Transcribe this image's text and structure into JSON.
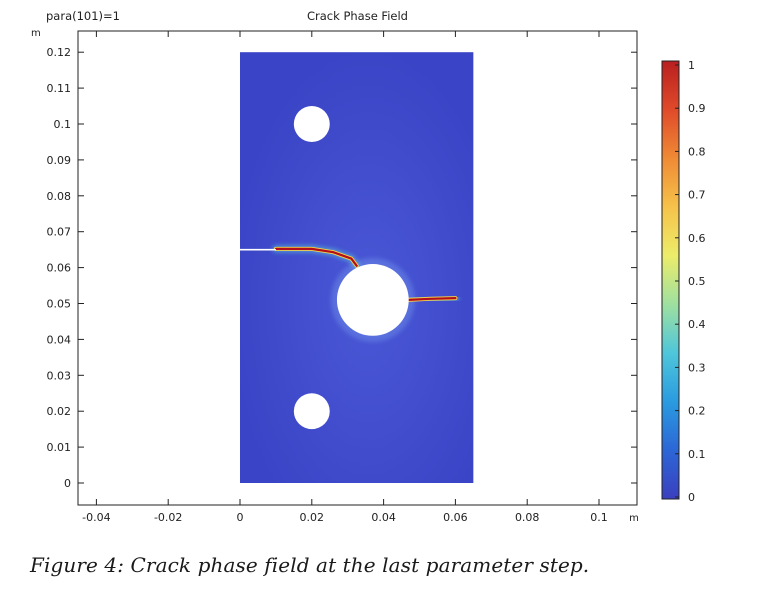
{
  "header": {
    "param_label": "para(101)=1",
    "title": "Crack Phase Field"
  },
  "caption": "Figure 4: Crack phase field at the last parameter step.",
  "colors": {
    "background_field": "#3b47c8",
    "crack_core": "#b30f1a",
    "hole_fill": "#ffffff"
  },
  "chart_data": {
    "type": "heatmap",
    "title": "Crack Phase Field",
    "subtitle": "para(101)=1",
    "xlabel": "m",
    "ylabel": "m",
    "xlim": [
      -0.045,
      0.11
    ],
    "ylim": [
      -0.006,
      0.126
    ],
    "x_ticks": [
      -0.04,
      -0.02,
      0,
      0.02,
      0.04,
      0.06,
      0.08,
      0.1
    ],
    "x_tick_labels": [
      "-0.04",
      "-0.02",
      "0",
      "0.02",
      "0.04",
      "0.06",
      "0.08",
      "0.1"
    ],
    "y_ticks": [
      0,
      0.01,
      0.02,
      0.03,
      0.04,
      0.05,
      0.06,
      0.07,
      0.08,
      0.09,
      0.1,
      0.11,
      0.12
    ],
    "y_tick_labels": [
      "0",
      "0.01",
      "0.02",
      "0.03",
      "0.04",
      "0.05",
      "0.06",
      "0.07",
      "0.08",
      "0.09",
      "0.1",
      "0.11",
      "0.12"
    ],
    "domain": {
      "x": [
        0,
        0.065
      ],
      "y": [
        0,
        0.12
      ]
    },
    "holes": [
      {
        "cx": 0.02,
        "cy": 0.1,
        "r": 0.005
      },
      {
        "cx": 0.037,
        "cy": 0.051,
        "r": 0.01
      },
      {
        "cx": 0.02,
        "cy": 0.02,
        "r": 0.005
      }
    ],
    "notch": {
      "x": [
        0,
        0.01
      ],
      "y": 0.065
    },
    "cracks": [
      {
        "name": "upper crack",
        "points": [
          [
            0.01,
            0.0652
          ],
          [
            0.02,
            0.0652
          ],
          [
            0.026,
            0.0643
          ],
          [
            0.031,
            0.0625
          ],
          [
            0.0325,
            0.0605
          ]
        ]
      },
      {
        "name": "lower crack",
        "points": [
          [
            0.047,
            0.051
          ],
          [
            0.053,
            0.0513
          ],
          [
            0.06,
            0.0515
          ]
        ]
      }
    ],
    "colorbar": {
      "min": 0,
      "max": 1,
      "ticks": [
        0,
        0.1,
        0.2,
        0.3,
        0.4,
        0.5,
        0.6,
        0.7,
        0.8,
        0.9,
        1
      ],
      "tick_labels": [
        "0",
        "0.1",
        "0.2",
        "0.3",
        "0.4",
        "0.5",
        "0.6",
        "0.7",
        "0.8",
        "0.9",
        "1"
      ],
      "colormap": [
        "#3b3fbf",
        "#2c66d6",
        "#2a9be0",
        "#4fc6da",
        "#9ee0a0",
        "#ecec6a",
        "#f6c24a",
        "#ef8a35",
        "#e04a2a",
        "#b81f1f"
      ]
    }
  }
}
